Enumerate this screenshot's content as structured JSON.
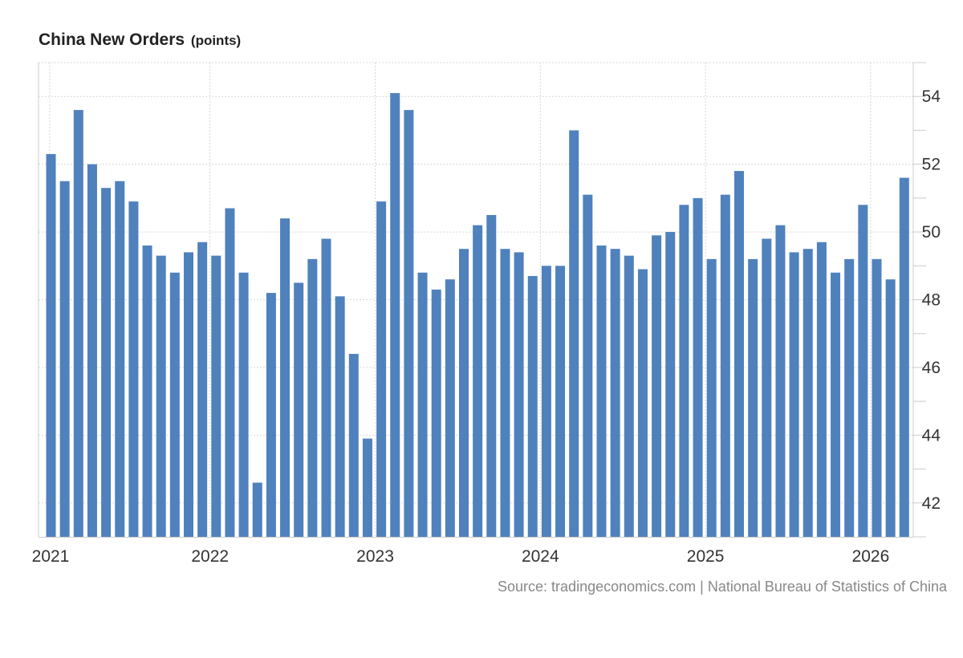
{
  "colors": {
    "bar": "#4f81bd",
    "grid": "#d8d8d8",
    "axis": "#cccccc",
    "text": "#333333",
    "source": "#888888"
  },
  "title": "China New Orders",
  "title_unit": "(points)",
  "source": {
    "prefix": "Source: ",
    "site": "tradingeconomics.com",
    "separator": " | ",
    "agency": "National Bureau of Statistics of China"
  },
  "chart_data": {
    "type": "bar",
    "title": "China New Orders",
    "ylabel": "points",
    "ylim": [
      41,
      55
    ],
    "yticks": [
      42,
      44,
      46,
      48,
      50,
      52,
      54
    ],
    "x_start": "2021-01",
    "xticks": [
      {
        "label": "2021",
        "index": 0
      },
      {
        "label": "2022",
        "index": 12
      },
      {
        "label": "2023",
        "index": 24
      },
      {
        "label": "2024",
        "index": 36
      },
      {
        "label": "2025",
        "index": 48
      },
      {
        "label": "2026",
        "index": 60
      }
    ],
    "values": [
      52.3,
      51.5,
      53.6,
      52.0,
      51.3,
      51.5,
      50.9,
      49.6,
      49.3,
      48.8,
      49.4,
      49.7,
      49.3,
      50.7,
      48.8,
      42.6,
      48.2,
      50.4,
      48.5,
      49.2,
      49.8,
      48.1,
      46.4,
      43.9,
      50.9,
      54.1,
      53.6,
      48.8,
      48.3,
      48.6,
      49.5,
      50.2,
      50.5,
      49.5,
      49.4,
      48.7,
      49.0,
      49.0,
      53.0,
      51.1,
      49.6,
      49.5,
      49.3,
      48.9,
      49.9,
      50.0,
      50.8,
      51.0,
      49.2,
      51.1,
      51.8,
      49.2,
      49.8,
      50.2,
      49.4,
      49.5,
      49.7,
      48.8,
      49.2,
      50.8,
      49.2,
      48.6,
      51.6
    ]
  }
}
